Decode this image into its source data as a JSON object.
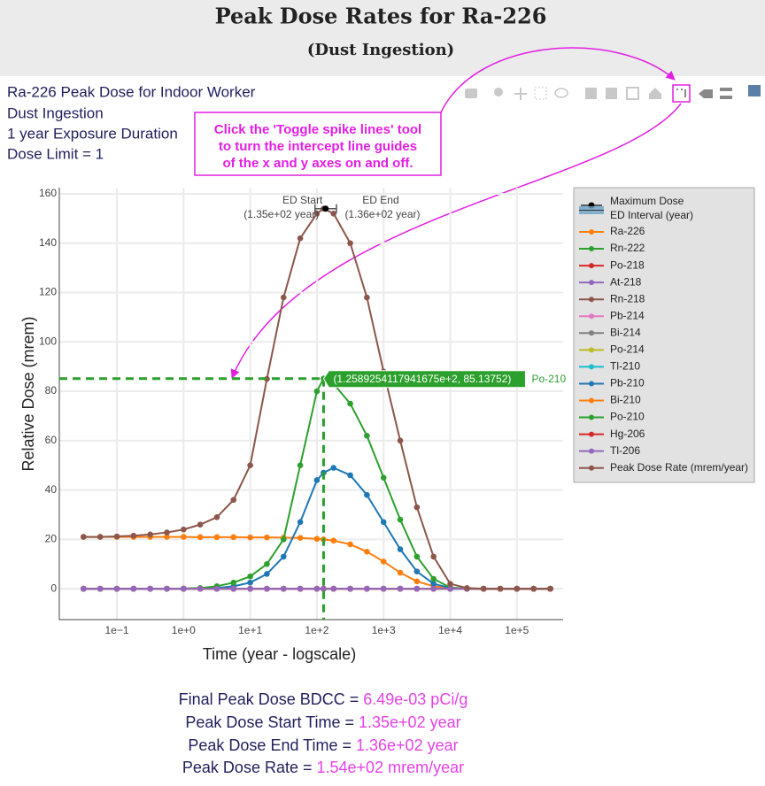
{
  "header": {
    "title": "Peak Dose Rates for Ra-226",
    "subtitle": "(Dust Ingestion)"
  },
  "info": [
    "Ra-226 Peak Dose for Indoor Worker",
    "Dust Ingestion",
    "1 year Exposure Duration",
    "Dose Limit = 1"
  ],
  "callout": [
    "Click the 'Toggle spike lines' tool",
    "to turn the intercept line guides",
    "of the x and y axes on and off."
  ],
  "chart_data": {
    "type": "line",
    "x_label": "Time (year - logscale)",
    "y_label": "Relative Dose (mrem)",
    "log_x": true,
    "grid": true,
    "legend": "right",
    "x": [
      0.03162,
      0.05623,
      0.1,
      0.1778,
      0.3162,
      0.5623,
      1,
      1.778,
      3.162,
      5.623,
      10,
      17.78,
      31.62,
      56.23,
      100,
      125.9,
      177.8,
      316.2,
      562.3,
      1000,
      1778,
      3162,
      5623,
      10000,
      17780,
      31620,
      56230,
      100000,
      177800,
      316200
    ],
    "xlim": [
      0.0137,
      493000
    ],
    "xticks": [
      {
        "value": 0.1,
        "label": "1e−1"
      },
      {
        "value": 1,
        "label": "1e+0"
      },
      {
        "value": 10,
        "label": "1e+1"
      },
      {
        "value": 100,
        "label": "1e+2"
      },
      {
        "value": 1000,
        "label": "1e+3"
      },
      {
        "value": 10000,
        "label": "1e+4"
      },
      {
        "value": 100000,
        "label": "1e+5"
      }
    ],
    "ylim": [
      -12.5,
      162.5
    ],
    "yticks": [
      0,
      20,
      40,
      60,
      80,
      100,
      120,
      140,
      160
    ],
    "series": [
      {
        "name": "Ra-226",
        "color": "#ff7f0e",
        "values": [
          21,
          21,
          21,
          21,
          21,
          21,
          21,
          20.9,
          20.9,
          20.9,
          20.8,
          20.8,
          20.7,
          20.6,
          20.2,
          20,
          19.5,
          18,
          15,
          11,
          6.5,
          3,
          1,
          0.2,
          0,
          0,
          0,
          0,
          0,
          0
        ]
      },
      {
        "name": "Rn-222",
        "color": "#2ca02c",
        "values": [
          0,
          0,
          0,
          0,
          0,
          0,
          0,
          0,
          0,
          0,
          0,
          0,
          0,
          0,
          0,
          0,
          0,
          0,
          0,
          0,
          0,
          0,
          0,
          0,
          0,
          0,
          0,
          0,
          0,
          0
        ]
      },
      {
        "name": "Po-218",
        "color": "#d62728",
        "values": [
          0,
          0,
          0,
          0,
          0,
          0,
          0,
          0,
          0,
          0,
          0,
          0,
          0,
          0,
          0,
          0,
          0,
          0,
          0,
          0,
          0,
          0,
          0,
          0,
          0,
          0,
          0,
          0,
          0,
          0
        ]
      },
      {
        "name": "At-218",
        "color": "#9467bd",
        "values": [
          0,
          0,
          0,
          0,
          0,
          0,
          0,
          0,
          0,
          0,
          0,
          0,
          0,
          0,
          0,
          0,
          0,
          0,
          0,
          0,
          0,
          0,
          0,
          0,
          0,
          0,
          0,
          0,
          0,
          0
        ]
      },
      {
        "name": "Rn-218",
        "color": "#8c564b",
        "values": [
          0,
          0,
          0,
          0,
          0,
          0,
          0,
          0,
          0,
          0,
          0,
          0,
          0,
          0,
          0,
          0,
          0,
          0,
          0,
          0,
          0,
          0,
          0,
          0,
          0,
          0,
          0,
          0,
          0,
          0
        ]
      },
      {
        "name": "Pb-214",
        "color": "#e377c2",
        "values": [
          0,
          0,
          0,
          0,
          0,
          0,
          0,
          0,
          0,
          0,
          0,
          0,
          0,
          0,
          0,
          0,
          0,
          0,
          0,
          0,
          0,
          0,
          0,
          0,
          0,
          0,
          0,
          0,
          0,
          0
        ]
      },
      {
        "name": "Bi-214",
        "color": "#7f7f7f",
        "values": [
          0,
          0,
          0,
          0,
          0,
          0,
          0,
          0,
          0,
          0,
          0,
          0,
          0,
          0,
          0,
          0,
          0,
          0,
          0,
          0,
          0,
          0,
          0,
          0,
          0,
          0,
          0,
          0,
          0,
          0
        ]
      },
      {
        "name": "Po-214",
        "color": "#bcbd22",
        "values": [
          0,
          0,
          0,
          0,
          0,
          0,
          0,
          0,
          0,
          0,
          0,
          0,
          0,
          0,
          0,
          0,
          0,
          0,
          0,
          0,
          0,
          0,
          0,
          0,
          0,
          0,
          0,
          0,
          0,
          0
        ]
      },
      {
        "name": "Tl-210",
        "color": "#17becf",
        "values": [
          0,
          0,
          0,
          0,
          0,
          0,
          0,
          0,
          0,
          0,
          0,
          0,
          0,
          0,
          0,
          0,
          0,
          0,
          0,
          0,
          0,
          0,
          0,
          0,
          0,
          0,
          0,
          0,
          0,
          0
        ]
      },
      {
        "name": "Pb-210",
        "color": "#1f77b4",
        "values": [
          0,
          0,
          0,
          0,
          0,
          0,
          0.05,
          0.1,
          0.3,
          1,
          2.5,
          6,
          13,
          27,
          44,
          47,
          49,
          46,
          38,
          27,
          16,
          7,
          2,
          0.3,
          0,
          0,
          0,
          0,
          0,
          0
        ]
      },
      {
        "name": "Bi-210",
        "color": "#ff7f0e",
        "values": [
          0,
          0,
          0,
          0,
          0,
          0,
          0,
          0,
          0,
          0,
          0,
          0,
          0,
          0,
          0,
          0,
          0,
          0,
          0,
          0,
          0,
          0,
          0,
          0,
          0,
          0,
          0,
          0,
          0,
          0
        ]
      },
      {
        "name": "Po-210",
        "color": "#2ca02c",
        "values": [
          0,
          0,
          0,
          0,
          0,
          0,
          0.1,
          0.3,
          1,
          2.5,
          5,
          10,
          20,
          50,
          80,
          85.13752,
          83,
          75,
          62,
          45,
          28,
          13,
          4,
          0.5,
          0,
          0,
          0,
          0,
          0,
          0
        ]
      },
      {
        "name": "Hg-206",
        "color": "#d62728",
        "values": [
          0,
          0,
          0,
          0,
          0,
          0,
          0,
          0,
          0,
          0,
          0,
          0,
          0,
          0,
          0,
          0,
          0,
          0,
          0,
          0,
          0,
          0,
          0,
          0,
          0,
          0,
          0,
          0,
          0,
          0
        ]
      },
      {
        "name": "Tl-206",
        "color": "#9467bd",
        "values": [
          0,
          0,
          0,
          0,
          0,
          0,
          0,
          0,
          0,
          0,
          0,
          0,
          0,
          0,
          0,
          0,
          0,
          0,
          0,
          0,
          0,
          0,
          0,
          0,
          0,
          0,
          0,
          0,
          0,
          0
        ]
      },
      {
        "name": "Peak Dose Rate (mrem/year)",
        "color": "#8c564b",
        "values": [
          21,
          21,
          21.2,
          21.5,
          22,
          22.8,
          24,
          26,
          29,
          36,
          50,
          85,
          118,
          142,
          152,
          154,
          152,
          140,
          118,
          88,
          60,
          33,
          13,
          2,
          0.3,
          0,
          0,
          0,
          0,
          0
        ]
      }
    ],
    "max_dose": {
      "name": "Maximum Dose",
      "x": 135,
      "y": 154,
      "color": "#000000"
    },
    "ed_interval": {
      "name": "ED Interval (year)",
      "start": 135,
      "end": 136,
      "color": "#6aa3c8"
    },
    "ed_start_label": [
      "ED Start",
      "(1.35e+02 year)"
    ],
    "ed_end_label": [
      "ED End",
      "(1.36e+02 year)"
    ],
    "hover": {
      "x": 125.89254117941675,
      "y": 85.13752,
      "label": "(1.2589254117941675e+2, 85.13752)",
      "series": "Po-210",
      "color": "#2ca02c"
    }
  },
  "summary": [
    {
      "label": "Final Peak Dose BDCC =",
      "value": "6.49e-03 pCi/g"
    },
    {
      "label": "Peak Dose Start Time =",
      "value": "1.35e+02 year"
    },
    {
      "label": "Peak Dose End Time =",
      "value": "1.36e+02 year"
    },
    {
      "label": "Peak Dose Rate =",
      "value": "1.54e+02 mrem/year"
    }
  ]
}
